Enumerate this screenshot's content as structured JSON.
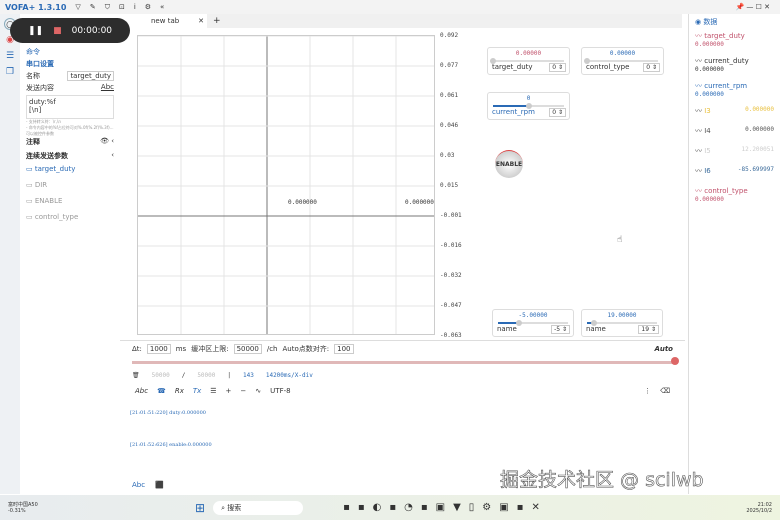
{
  "app": {
    "title": "VOFA+ 1.3.10"
  },
  "recording": {
    "time": "00:00:00"
  },
  "tab": {
    "label": "new tab"
  },
  "side": {
    "header": "命令",
    "section": "串口设置",
    "name_label": "名称",
    "name_value": "target_duty",
    "content_label": "发送内容",
    "abc": "Abc",
    "content": "duty:%f\n[\\n]",
    "hint1": "- 支持转义符：\\r,\\n",
    "hint2": "- 命令内容中的%f占位符可对%.0f(%.2f)%.3f)...可以被控件参数",
    "notes_label": "注释",
    "params_label": "连续发送参数",
    "params": [
      "target_duty",
      "DIR",
      "ENABLE",
      "control_type"
    ]
  },
  "chart": {
    "yticks": [
      "0.092",
      "0.077",
      "0.061",
      "0.046",
      "0.03",
      "0.015",
      "-0.001",
      "-0.016",
      "-0.032",
      "-0.047",
      "-0.063"
    ],
    "cursor_labels": [
      "0.000000",
      "0.000000"
    ]
  },
  "widgets": [
    {
      "value": "0.00000",
      "name": "target_duty",
      "spin": "0",
      "level": 0,
      "color": "#c0506a"
    },
    {
      "value": "0.00000",
      "name": "control_type",
      "spin": "0",
      "level": 0,
      "color": "#2a6ab5"
    },
    {
      "value": "0",
      "name": "current_rpm",
      "spin": "0",
      "level": 0.5,
      "color": "#2a6ab5"
    },
    {
      "value": "-5.00000",
      "name": "name",
      "spin": "-5",
      "level": 0.3,
      "color": "#2a6ab5"
    },
    {
      "value": "19.00000",
      "name": "name",
      "spin": "19",
      "level": 0.1,
      "color": "#2a6ab5"
    }
  ],
  "enable_button": "ENABLE",
  "data_panel": {
    "title": "数据",
    "channels": [
      {
        "name": "target_duty",
        "value": "0.000000",
        "color": "#c0506a"
      },
      {
        "name": "current_duty",
        "value": "0.000000",
        "color": "#333333"
      },
      {
        "name": "current_rpm",
        "value": "0.000000",
        "color": "#2a6ab5"
      },
      {
        "name": "I3",
        "value": "0.000000",
        "color": "#e8c040"
      },
      {
        "name": "I4",
        "value": "0.000000",
        "color": "#555555"
      },
      {
        "name": "I5",
        "value": "12.200051",
        "color": "#cccccc"
      },
      {
        "name": "I6",
        "value": "-85.699997",
        "color": "#3a6a9a"
      },
      {
        "name": "control_type",
        "value": "0.000000",
        "color": "#c0506a"
      }
    ]
  },
  "controls": {
    "dt_label": "Δt:",
    "dt": "1000",
    "ms": "ms",
    "buf_label": "缓冲区上限:",
    "buf": "50000",
    "per_ch": "/ch",
    "auto_label": "Auto点数对齐:",
    "auto_val": "100",
    "auto": "Auto",
    "count1": "50000",
    "slash": "/",
    "count2": "50000",
    "sep": "|",
    "n": "143",
    "xdiv": "14200ms/X-div",
    "abc": "Abc",
    "rx": "Rx",
    "tx": "Tx",
    "encoding": "UTF-8"
  },
  "log": [
    "[21:01:51:220] duty:0.000000",
    "[21:01:52:626] enable:0.000000"
  ],
  "taskbar": {
    "stock": "富时中国A50",
    "change": "-0.31%",
    "search": "搜索",
    "time": "21:02",
    "date": "2025/10/2",
    "watermark": "掘金技术社区 @ scilwb"
  }
}
